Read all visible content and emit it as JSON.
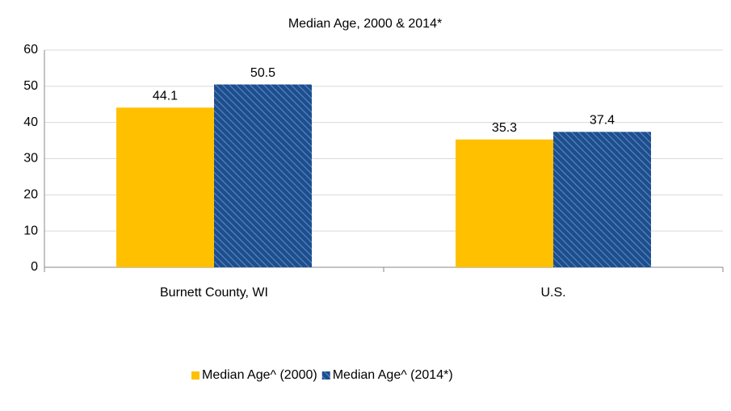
{
  "chart_data": {
    "type": "bar",
    "title": "Median Age, 2000 & 2014*",
    "categories": [
      "Burnett County, WI",
      "U.S."
    ],
    "series": [
      {
        "name": "Median Age^ (2000)",
        "color": "#ffc000",
        "values": [
          44.1,
          35.3
        ]
      },
      {
        "name": "Median Age^ (2014*)",
        "color": "#1f4e8c",
        "hatch": true,
        "values": [
          50.5,
          37.4
        ]
      }
    ],
    "ylim": [
      0,
      60
    ],
    "yticks": [
      0,
      10,
      20,
      30,
      40,
      50,
      60
    ],
    "grid": true,
    "legend": "bottom"
  }
}
